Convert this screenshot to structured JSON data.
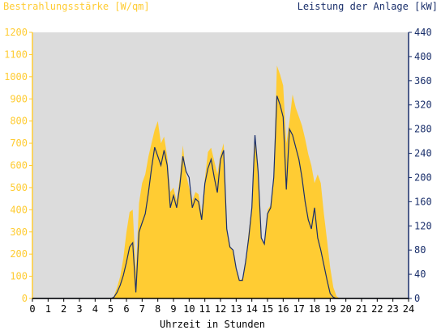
{
  "header": {
    "left_title": "Bestrahlungsstärke [W/qm]",
    "right_title": "Leistung der Anlage [kW]"
  },
  "colors": {
    "left_axis": "#ffcc33",
    "right_axis": "#1a2f6b",
    "plot_background": "#dcdcdc",
    "area_fill": "#ffcc33",
    "line": "#1a2f6b"
  },
  "chart_data": {
    "type": "area",
    "title": "",
    "xlabel": "Uhrzeit in Stunden",
    "ylabel": "Bestrahlungsstärke [W/qm]",
    "y2label": "Leistung der Anlage [kW]",
    "xlim": [
      0,
      24
    ],
    "ylim": [
      0,
      1200
    ],
    "y2lim": [
      0,
      440
    ],
    "x_ticks": [
      "0",
      "1",
      "2",
      "3",
      "4",
      "5",
      "6",
      "7",
      "8",
      "9",
      "10",
      "11",
      "12",
      "13",
      "14",
      "15",
      "16",
      "17",
      "18",
      "19",
      "20",
      "21",
      "22",
      "23",
      "24"
    ],
    "y_ticks": [
      "0",
      "100",
      "200",
      "300",
      "400",
      "500",
      "600",
      "700",
      "800",
      "900",
      "1000",
      "1100",
      "1200"
    ],
    "y2_ticks": [
      "0",
      "40",
      "80",
      "120",
      "160",
      "200",
      "240",
      "280",
      "320",
      "360",
      "400",
      "440"
    ],
    "grid": false,
    "series": [
      {
        "name": "Bestrahlungsstärke [W/qm]",
        "axis": "left",
        "type": "area",
        "x": [
          0,
          5.0,
          5.2,
          5.4,
          5.6,
          5.8,
          6.0,
          6.2,
          6.4,
          6.6,
          6.8,
          7.0,
          7.2,
          7.4,
          7.6,
          7.8,
          8.0,
          8.2,
          8.4,
          8.6,
          8.8,
          9.0,
          9.2,
          9.4,
          9.6,
          9.8,
          10.0,
          10.2,
          10.4,
          10.6,
          10.8,
          11.0,
          11.2,
          11.4,
          11.6,
          11.8,
          12.0,
          12.2,
          12.4,
          12.6,
          12.8,
          13.0,
          13.2,
          13.4,
          13.6,
          13.8,
          14.0,
          14.2,
          14.4,
          14.6,
          14.8,
          15.0,
          15.2,
          15.4,
          15.6,
          15.8,
          16.0,
          16.2,
          16.4,
          16.6,
          16.8,
          17.0,
          17.2,
          17.4,
          17.6,
          17.8,
          18.0,
          18.2,
          18.4,
          18.6,
          18.8,
          19.0,
          19.2,
          19.4,
          19.6,
          19.8,
          24
        ],
        "values": [
          0,
          0,
          10,
          50,
          100,
          180,
          300,
          390,
          400,
          120,
          430,
          520,
          560,
          640,
          700,
          760,
          800,
          700,
          730,
          640,
          480,
          500,
          440,
          540,
          690,
          560,
          500,
          440,
          480,
          470,
          380,
          540,
          660,
          680,
          620,
          560,
          650,
          700,
          320,
          240,
          210,
          130,
          80,
          90,
          170,
          300,
          420,
          740,
          600,
          280,
          240,
          400,
          420,
          560,
          1050,
          1010,
          960,
          700,
          800,
          920,
          860,
          820,
          780,
          720,
          650,
          600,
          520,
          560,
          520,
          380,
          260,
          140,
          50,
          10,
          0,
          0,
          0
        ]
      },
      {
        "name": "Leistung der Anlage [kW]",
        "axis": "right",
        "type": "line",
        "x": [
          0,
          5.0,
          5.2,
          5.4,
          5.6,
          5.8,
          6.0,
          6.2,
          6.4,
          6.6,
          6.8,
          7.0,
          7.2,
          7.4,
          7.6,
          7.8,
          8.0,
          8.2,
          8.4,
          8.6,
          8.8,
          9.0,
          9.2,
          9.4,
          9.6,
          9.8,
          10.0,
          10.2,
          10.4,
          10.6,
          10.8,
          11.0,
          11.2,
          11.4,
          11.6,
          11.8,
          12.0,
          12.2,
          12.4,
          12.6,
          12.8,
          13.0,
          13.2,
          13.4,
          13.6,
          13.8,
          14.0,
          14.2,
          14.4,
          14.6,
          14.8,
          15.0,
          15.2,
          15.4,
          15.6,
          15.8,
          16.0,
          16.2,
          16.4,
          16.6,
          16.8,
          17.0,
          17.2,
          17.4,
          17.6,
          17.8,
          18.0,
          18.2,
          18.4,
          18.6,
          18.8,
          19.0,
          19.2,
          19.4,
          19.6,
          19.8,
          24
        ],
        "values": [
          0,
          0,
          2,
          10,
          22,
          38,
          60,
          85,
          92,
          10,
          110,
          125,
          140,
          175,
          215,
          250,
          235,
          220,
          245,
          220,
          150,
          170,
          150,
          185,
          235,
          210,
          200,
          150,
          165,
          160,
          130,
          190,
          215,
          230,
          200,
          175,
          230,
          245,
          115,
          85,
          80,
          50,
          30,
          30,
          60,
          100,
          150,
          270,
          210,
          100,
          90,
          140,
          150,
          200,
          335,
          320,
          300,
          180,
          280,
          270,
          250,
          230,
          200,
          160,
          130,
          115,
          150,
          100,
          80,
          55,
          30,
          8,
          2,
          0,
          0,
          0,
          0
        ]
      }
    ]
  }
}
